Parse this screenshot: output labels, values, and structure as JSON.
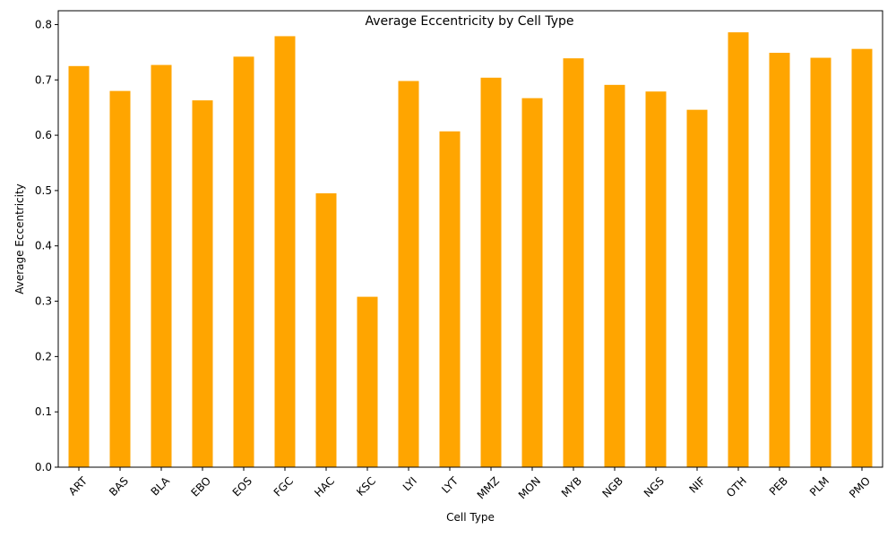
{
  "chart_data": {
    "type": "bar",
    "title": "Average Eccentricity by Cell Type",
    "xlabel": "Cell Type",
    "ylabel": "Average Eccentricity",
    "categories": [
      "ART",
      "BAS",
      "BLA",
      "EBO",
      "EOS",
      "FGC",
      "HAC",
      "KSC",
      "LYI",
      "LYT",
      "MMZ",
      "MON",
      "MYB",
      "NGB",
      "NGS",
      "NIF",
      "OTH",
      "PEB",
      "PLM",
      "PMO"
    ],
    "values": [
      0.725,
      0.68,
      0.727,
      0.663,
      0.742,
      0.779,
      0.495,
      0.308,
      0.698,
      0.607,
      0.704,
      0.667,
      0.739,
      0.691,
      0.679,
      0.646,
      0.786,
      0.749,
      0.74,
      0.756
    ],
    "ylim": [
      0,
      0.825
    ],
    "yticks": [
      "0.0",
      "0.1",
      "0.2",
      "0.3",
      "0.4",
      "0.5",
      "0.6",
      "0.7",
      "0.8"
    ],
    "bar_color": "#ffa500",
    "grid": false,
    "legend": "none"
  }
}
